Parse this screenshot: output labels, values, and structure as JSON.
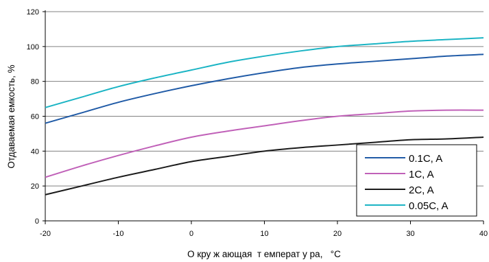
{
  "chart_data": {
    "type": "line",
    "xlabel": "О кру ж ающая  т емперат у ра,   °С",
    "ylabel": "Отдаваемая емкость,  %",
    "xlim": [
      -20,
      40
    ],
    "ylim": [
      0,
      120
    ],
    "x_ticks": [
      -20,
      -10,
      0,
      10,
      20,
      30,
      40
    ],
    "y_ticks": [
      0,
      20,
      40,
      60,
      80,
      100,
      120
    ],
    "x_tick_labels": [
      "-20",
      "-10",
      "0",
      "10",
      "20",
      "30",
      "40"
    ],
    "y_tick_labels": [
      "0",
      "20",
      "40",
      "60",
      "80",
      "100",
      "120"
    ],
    "grid": "horizontal",
    "legend_position": "bottom-right",
    "series": [
      {
        "name": "0.1C, A",
        "color": "#1f5aa6",
        "x": [
          -20,
          -15,
          -10,
          -5,
          0,
          5,
          10,
          15,
          20,
          25,
          30,
          35,
          40
        ],
        "y": [
          56,
          62,
          68,
          73,
          77.5,
          81.5,
          85,
          88,
          90,
          91.5,
          93,
          94.5,
          95.5
        ]
      },
      {
        "name": "1C, A",
        "color": "#c060b8",
        "x": [
          -20,
          -15,
          -10,
          -5,
          0,
          5,
          10,
          15,
          20,
          25,
          30,
          35,
          40
        ],
        "y": [
          25,
          31.5,
          37.5,
          43,
          48,
          51.5,
          54.5,
          57.5,
          60,
          61.5,
          63,
          63.5,
          63.5
        ]
      },
      {
        "name": "2C, A",
        "color": "#1a1a1a",
        "x": [
          -20,
          -15,
          -10,
          -5,
          0,
          5,
          10,
          15,
          20,
          25,
          30,
          35,
          40
        ],
        "y": [
          15,
          20,
          25,
          29.5,
          34,
          37,
          40,
          42,
          43.5,
          45,
          46.5,
          47,
          48
        ]
      },
      {
        "name": "0.05C, A",
        "color": "#1ab4c4",
        "x": [
          -20,
          -15,
          -10,
          -5,
          0,
          5,
          10,
          15,
          20,
          25,
          30,
          35,
          40
        ],
        "y": [
          65,
          71,
          77,
          82,
          86.5,
          91,
          94.5,
          97.5,
          100,
          101.5,
          103,
          104,
          105
        ]
      }
    ]
  }
}
